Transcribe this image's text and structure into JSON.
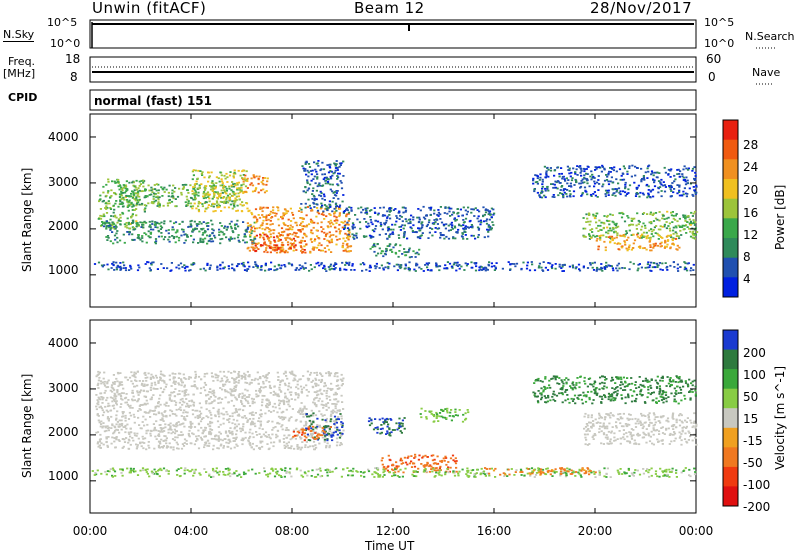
{
  "header": {
    "station": "Unwin (fitACF)",
    "beam": "Beam 12",
    "date": "28/Nov/2017"
  },
  "left_labels": {
    "nsky": "N.Sky",
    "freq": "Freq.",
    "freq_unit": "[MHz]",
    "cpid": "CPID"
  },
  "right_labels": {
    "nsearch": "N.Search",
    "nave": "Nave"
  },
  "mode_text": "normal (fast) 151",
  "strips": {
    "noise_ticks": [
      "10^5",
      "10^0"
    ],
    "noise_right_ticks": [
      "10^5",
      "10^0"
    ],
    "freq_ticks": [
      "18",
      "8"
    ],
    "nave_ticks": [
      "60",
      "0"
    ]
  },
  "colors": {
    "power_scale": [
      "#0020e0",
      "#2050b0",
      "#2f8a5a",
      "#3aa84a",
      "#9cc43a",
      "#f0c020",
      "#f09020",
      "#f05a10",
      "#e82010"
    ],
    "velocity_scale": [
      "#1a3ad0",
      "#2e7a3e",
      "#3aa83a",
      "#88cc44",
      "#c8c8c0",
      "#f0a020",
      "#f07820",
      "#f03a10",
      "#e01010"
    ]
  },
  "chart_data": [
    {
      "type": "heatmap",
      "title": "Power",
      "ylabel": "Slant Range [km]",
      "xlabel": "Time UT",
      "xlim": [
        "00:00",
        "24:00"
      ],
      "ylim": [
        300,
        4500
      ],
      "x_ticks": [
        "00:00",
        "04:00",
        "08:00",
        "12:00",
        "16:00",
        "20:00",
        "00:00"
      ],
      "y_ticks": [
        "1000",
        "2000",
        "3000",
        "4000"
      ],
      "colorbar": {
        "label": "Power [dB]",
        "ticks": [
          "4",
          "8",
          "12",
          "16",
          "20",
          "24",
          "28"
        ],
        "range": [
          0,
          32
        ]
      },
      "regions": [
        {
          "t0": 0.3,
          "t1": 2.2,
          "r0": 2000,
          "r1": 3100,
          "value": 14
        },
        {
          "t0": 0.5,
          "t1": 6.5,
          "r0": 1700,
          "r1": 2200,
          "value": 9
        },
        {
          "t0": 1.0,
          "t1": 6.0,
          "r0": 2500,
          "r1": 3000,
          "value": 13
        },
        {
          "t0": 4.0,
          "t1": 6.2,
          "r0": 2400,
          "r1": 3300,
          "value": 17
        },
        {
          "t0": 6.0,
          "t1": 7.0,
          "r0": 2800,
          "r1": 3200,
          "value": 24
        },
        {
          "t0": 6.2,
          "t1": 10.3,
          "r0": 1500,
          "r1": 2500,
          "value": 23
        },
        {
          "t0": 6.5,
          "t1": 8.5,
          "r0": 1500,
          "r1": 1900,
          "value": 27
        },
        {
          "t0": 8.3,
          "t1": 10.0,
          "r0": 2400,
          "r1": 3500,
          "value": 6
        },
        {
          "t0": 10.0,
          "t1": 16.0,
          "r0": 1800,
          "r1": 2500,
          "value": 6
        },
        {
          "t0": 11.0,
          "t1": 13.0,
          "r0": 1400,
          "r1": 1700,
          "value": 9
        },
        {
          "t0": 0.0,
          "t1": 24.0,
          "r0": 1100,
          "r1": 1300,
          "value": 5
        },
        {
          "t0": 17.5,
          "t1": 24.0,
          "r0": 2700,
          "r1": 3400,
          "value": 5
        },
        {
          "t0": 19.5,
          "t1": 24.0,
          "r0": 1800,
          "r1": 2400,
          "value": 14
        },
        {
          "t0": 20.0,
          "t1": 23.3,
          "r0": 1550,
          "r1": 1900,
          "value": 22
        }
      ]
    },
    {
      "type": "heatmap",
      "title": "Velocity",
      "ylabel": "Slant Range [km]",
      "xlabel": "Time UT",
      "xlim": [
        "00:00",
        "24:00"
      ],
      "ylim": [
        300,
        4500
      ],
      "x_ticks": [
        "00:00",
        "04:00",
        "08:00",
        "12:00",
        "16:00",
        "20:00",
        "00:00"
      ],
      "y_ticks": [
        "1000",
        "2000",
        "3000",
        "4000"
      ],
      "colorbar": {
        "label": "Velocity [m s^-1]",
        "ticks": [
          "200",
          "100",
          "50",
          "15",
          "-15",
          "-50",
          "-100",
          "-200"
        ]
      },
      "regions": [
        {
          "t0": 0.2,
          "t1": 10.0,
          "r0": 1700,
          "r1": 3400,
          "value": 0
        },
        {
          "t0": 8.5,
          "t1": 10.0,
          "r0": 1900,
          "r1": 2500,
          "value": 150
        },
        {
          "t0": 8.0,
          "t1": 9.5,
          "r0": 1900,
          "r1": 2200,
          "value": -70
        },
        {
          "t0": 11.0,
          "t1": 12.5,
          "r0": 2000,
          "r1": 2400,
          "value": 150
        },
        {
          "t0": 11.5,
          "t1": 14.5,
          "r0": 1200,
          "r1": 1600,
          "value": -70
        },
        {
          "t0": 13.0,
          "t1": 15.0,
          "r0": 2300,
          "r1": 2600,
          "value": 30
        },
        {
          "t0": 0.0,
          "t1": 24.0,
          "r0": 1100,
          "r1": 1300,
          "value": 25
        },
        {
          "t0": 15.5,
          "t1": 20.0,
          "r0": 1150,
          "r1": 1300,
          "value": -40
        },
        {
          "t0": 19.5,
          "t1": 24.0,
          "r0": 1800,
          "r1": 2500,
          "value": 0
        },
        {
          "t0": 17.5,
          "t1": 24.0,
          "r0": 2700,
          "r1": 3300,
          "value": 80
        }
      ]
    }
  ]
}
